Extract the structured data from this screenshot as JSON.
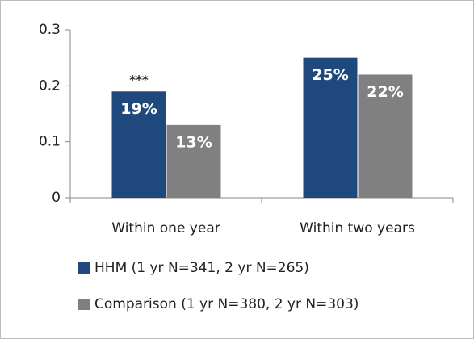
{
  "chart_data": {
    "type": "bar",
    "categories": [
      "Within one year",
      "Within two years"
    ],
    "series": [
      {
        "name": "HHM (1 yr N=341, 2 yr N=265)",
        "color": "#1f497d",
        "values": [
          0.19,
          0.25
        ],
        "value_labels": [
          "19%",
          "25%"
        ]
      },
      {
        "name": "Comparison (1 yr N=380, 2 yr N=303)",
        "color": "#808080",
        "values": [
          0.13,
          0.22
        ],
        "value_labels": [
          "13%",
          "22%"
        ]
      }
    ],
    "annotations": [
      {
        "text": "***",
        "category": 0,
        "series": 0
      }
    ],
    "ylim": [
      0,
      0.3
    ],
    "yticks": [
      0,
      0.1,
      0.2,
      0.3
    ],
    "grid": false,
    "legend": "bottom"
  }
}
